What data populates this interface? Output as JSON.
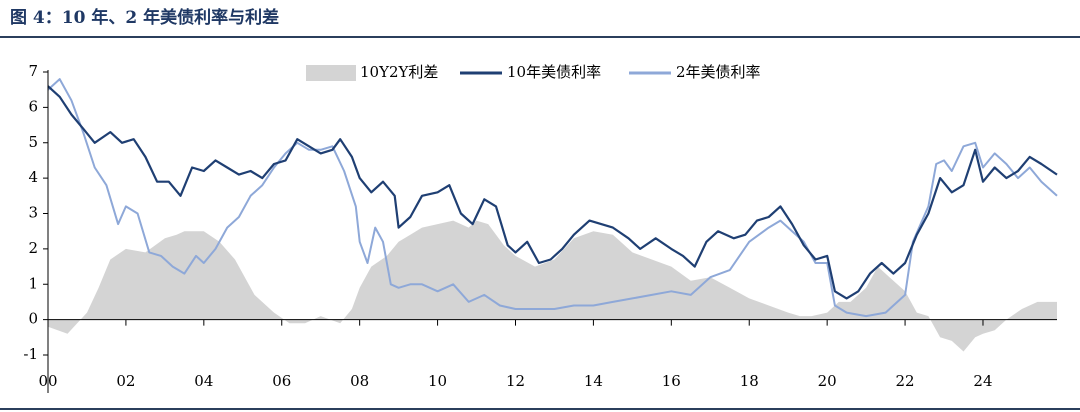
{
  "figure": {
    "title": "图 4：10 年、2 年美债利率与利差"
  },
  "chart_data": {
    "type": "line",
    "legend": [
      "10Y2Y利差",
      "10年美债利率",
      "2年美债利率"
    ],
    "colors": {
      "spread": "#d4d4d4",
      "ten_year": "#1f3f73",
      "two_year": "#8ea8d8"
    },
    "x_tick_labels": [
      "00",
      "02",
      "04",
      "06",
      "08",
      "10",
      "12",
      "14",
      "16",
      "18",
      "20",
      "22",
      "24"
    ],
    "y_tick_labels": [
      "7",
      "6",
      "5",
      "4",
      "3",
      "2",
      "1",
      "0",
      "-1"
    ],
    "ylim": [
      -1,
      7
    ],
    "xlim": [
      2000.0,
      2025.9
    ],
    "legend_position": "top-center",
    "grid": false,
    "series": [
      {
        "name": "10Y2Y利差",
        "kind": "area",
        "x": [
          2000.0,
          2000.5,
          2001.0,
          2001.3,
          2001.6,
          2002.0,
          2002.5,
          2003.0,
          2003.3,
          2003.5,
          2004.0,
          2004.4,
          2004.8,
          2005.3,
          2005.8,
          2006.2,
          2006.6,
          2007.0,
          2007.5,
          2007.8,
          2008.0,
          2008.3,
          2008.7,
          2009.0,
          2009.3,
          2009.6,
          2010.0,
          2010.4,
          2010.8,
          2011.0,
          2011.3,
          2011.7,
          2012.0,
          2012.5,
          2013.0,
          2013.5,
          2014.0,
          2014.5,
          2015.0,
          2015.5,
          2016.0,
          2016.5,
          2017.0,
          2017.5,
          2018.0,
          2018.5,
          2019.0,
          2019.3,
          2019.6,
          2020.0,
          2020.3,
          2020.6,
          2021.0,
          2021.3,
          2021.6,
          2022.0,
          2022.3,
          2022.6,
          2022.9,
          2023.2,
          2023.5,
          2023.8,
          2024.0,
          2024.3,
          2024.6,
          2025.0,
          2025.4,
          2025.9
        ],
        "y": [
          -0.2,
          -0.4,
          0.2,
          0.9,
          1.7,
          2.0,
          1.9,
          2.3,
          2.4,
          2.5,
          2.5,
          2.2,
          1.7,
          0.7,
          0.2,
          -0.1,
          -0.1,
          0.1,
          -0.1,
          0.3,
          0.9,
          1.5,
          1.8,
          2.2,
          2.4,
          2.6,
          2.7,
          2.8,
          2.6,
          2.8,
          2.7,
          2.1,
          1.8,
          1.5,
          1.7,
          2.3,
          2.5,
          2.4,
          1.9,
          1.7,
          1.5,
          1.1,
          1.2,
          0.9,
          0.6,
          0.4,
          0.2,
          0.1,
          0.1,
          0.2,
          0.5,
          0.5,
          0.9,
          1.5,
          1.2,
          0.8,
          0.2,
          0.1,
          -0.5,
          -0.6,
          -0.9,
          -0.5,
          -0.4,
          -0.3,
          0.0,
          0.3,
          0.5,
          0.5
        ]
      },
      {
        "name": "10年美债利率",
        "kind": "line",
        "x": [
          2000.0,
          2000.3,
          2000.6,
          2000.9,
          2001.2,
          2001.6,
          2001.9,
          2002.2,
          2002.5,
          2002.8,
          2003.1,
          2003.4,
          2003.7,
          2004.0,
          2004.3,
          2004.6,
          2004.9,
          2005.2,
          2005.5,
          2005.8,
          2006.1,
          2006.4,
          2006.7,
          2007.0,
          2007.3,
          2007.5,
          2007.8,
          2008.0,
          2008.3,
          2008.6,
          2008.9,
          2009.0,
          2009.3,
          2009.6,
          2010.0,
          2010.3,
          2010.6,
          2010.9,
          2011.2,
          2011.5,
          2011.8,
          2012.0,
          2012.3,
          2012.6,
          2012.9,
          2013.2,
          2013.5,
          2013.9,
          2014.2,
          2014.5,
          2014.9,
          2015.2,
          2015.6,
          2016.0,
          2016.3,
          2016.6,
          2016.9,
          2017.2,
          2017.6,
          2017.9,
          2018.2,
          2018.5,
          2018.8,
          2019.1,
          2019.4,
          2019.7,
          2020.0,
          2020.2,
          2020.5,
          2020.8,
          2021.1,
          2021.4,
          2021.7,
          2022.0,
          2022.3,
          2022.6,
          2022.9,
          2023.2,
          2023.5,
          2023.8,
          2024.0,
          2024.3,
          2024.6,
          2024.9,
          2025.2,
          2025.5,
          2025.9
        ],
        "y": [
          6.6,
          6.3,
          5.8,
          5.4,
          5.0,
          5.3,
          5.0,
          5.1,
          4.6,
          3.9,
          3.9,
          3.5,
          4.3,
          4.2,
          4.5,
          4.3,
          4.1,
          4.2,
          4.0,
          4.4,
          4.5,
          5.1,
          4.9,
          4.7,
          4.8,
          5.1,
          4.6,
          4.0,
          3.6,
          3.9,
          3.5,
          2.6,
          2.9,
          3.5,
          3.6,
          3.8,
          3.0,
          2.7,
          3.4,
          3.2,
          2.1,
          1.9,
          2.2,
          1.6,
          1.7,
          2.0,
          2.4,
          2.8,
          2.7,
          2.6,
          2.3,
          2.0,
          2.3,
          2.0,
          1.8,
          1.5,
          2.2,
          2.5,
          2.3,
          2.4,
          2.8,
          2.9,
          3.2,
          2.7,
          2.1,
          1.7,
          1.8,
          0.8,
          0.6,
          0.8,
          1.3,
          1.6,
          1.3,
          1.6,
          2.4,
          3.0,
          4.0,
          3.6,
          3.8,
          4.8,
          3.9,
          4.3,
          4.0,
          4.2,
          4.6,
          4.4,
          4.1
        ]
      },
      {
        "name": "2年美债利率",
        "kind": "line",
        "x": [
          2000.0,
          2000.3,
          2000.6,
          2000.9,
          2001.2,
          2001.5,
          2001.8,
          2002.0,
          2002.3,
          2002.6,
          2002.9,
          2003.2,
          2003.5,
          2003.8,
          2004.0,
          2004.3,
          2004.6,
          2004.9,
          2005.2,
          2005.5,
          2005.8,
          2006.1,
          2006.4,
          2006.7,
          2007.0,
          2007.3,
          2007.6,
          2007.9,
          2008.0,
          2008.2,
          2008.4,
          2008.6,
          2008.8,
          2009.0,
          2009.3,
          2009.6,
          2010.0,
          2010.4,
          2010.8,
          2011.2,
          2011.6,
          2012.0,
          2012.5,
          2013.0,
          2013.5,
          2014.0,
          2014.5,
          2015.0,
          2015.5,
          2016.0,
          2016.5,
          2017.0,
          2017.5,
          2018.0,
          2018.5,
          2018.8,
          2019.1,
          2019.4,
          2019.7,
          2020.0,
          2020.2,
          2020.5,
          2021.0,
          2021.5,
          2022.0,
          2022.2,
          2022.4,
          2022.6,
          2022.8,
          2023.0,
          2023.2,
          2023.5,
          2023.8,
          2024.0,
          2024.3,
          2024.6,
          2024.9,
          2025.2,
          2025.5,
          2025.9
        ],
        "y": [
          6.5,
          6.8,
          6.2,
          5.3,
          4.3,
          3.8,
          2.7,
          3.2,
          3.0,
          1.9,
          1.8,
          1.5,
          1.3,
          1.8,
          1.6,
          2.0,
          2.6,
          2.9,
          3.5,
          3.8,
          4.3,
          4.7,
          5.0,
          4.8,
          4.8,
          4.9,
          4.2,
          3.2,
          2.2,
          1.6,
          2.6,
          2.2,
          1.0,
          0.9,
          1.0,
          1.0,
          0.8,
          1.0,
          0.5,
          0.7,
          0.4,
          0.3,
          0.3,
          0.3,
          0.4,
          0.4,
          0.5,
          0.6,
          0.7,
          0.8,
          0.7,
          1.2,
          1.4,
          2.2,
          2.6,
          2.8,
          2.5,
          2.2,
          1.6,
          1.6,
          0.4,
          0.2,
          0.1,
          0.2,
          0.7,
          2.2,
          2.7,
          3.2,
          4.4,
          4.5,
          4.2,
          4.9,
          5.0,
          4.3,
          4.7,
          4.4,
          4.0,
          4.3,
          3.9,
          3.5
        ]
      }
    ]
  }
}
